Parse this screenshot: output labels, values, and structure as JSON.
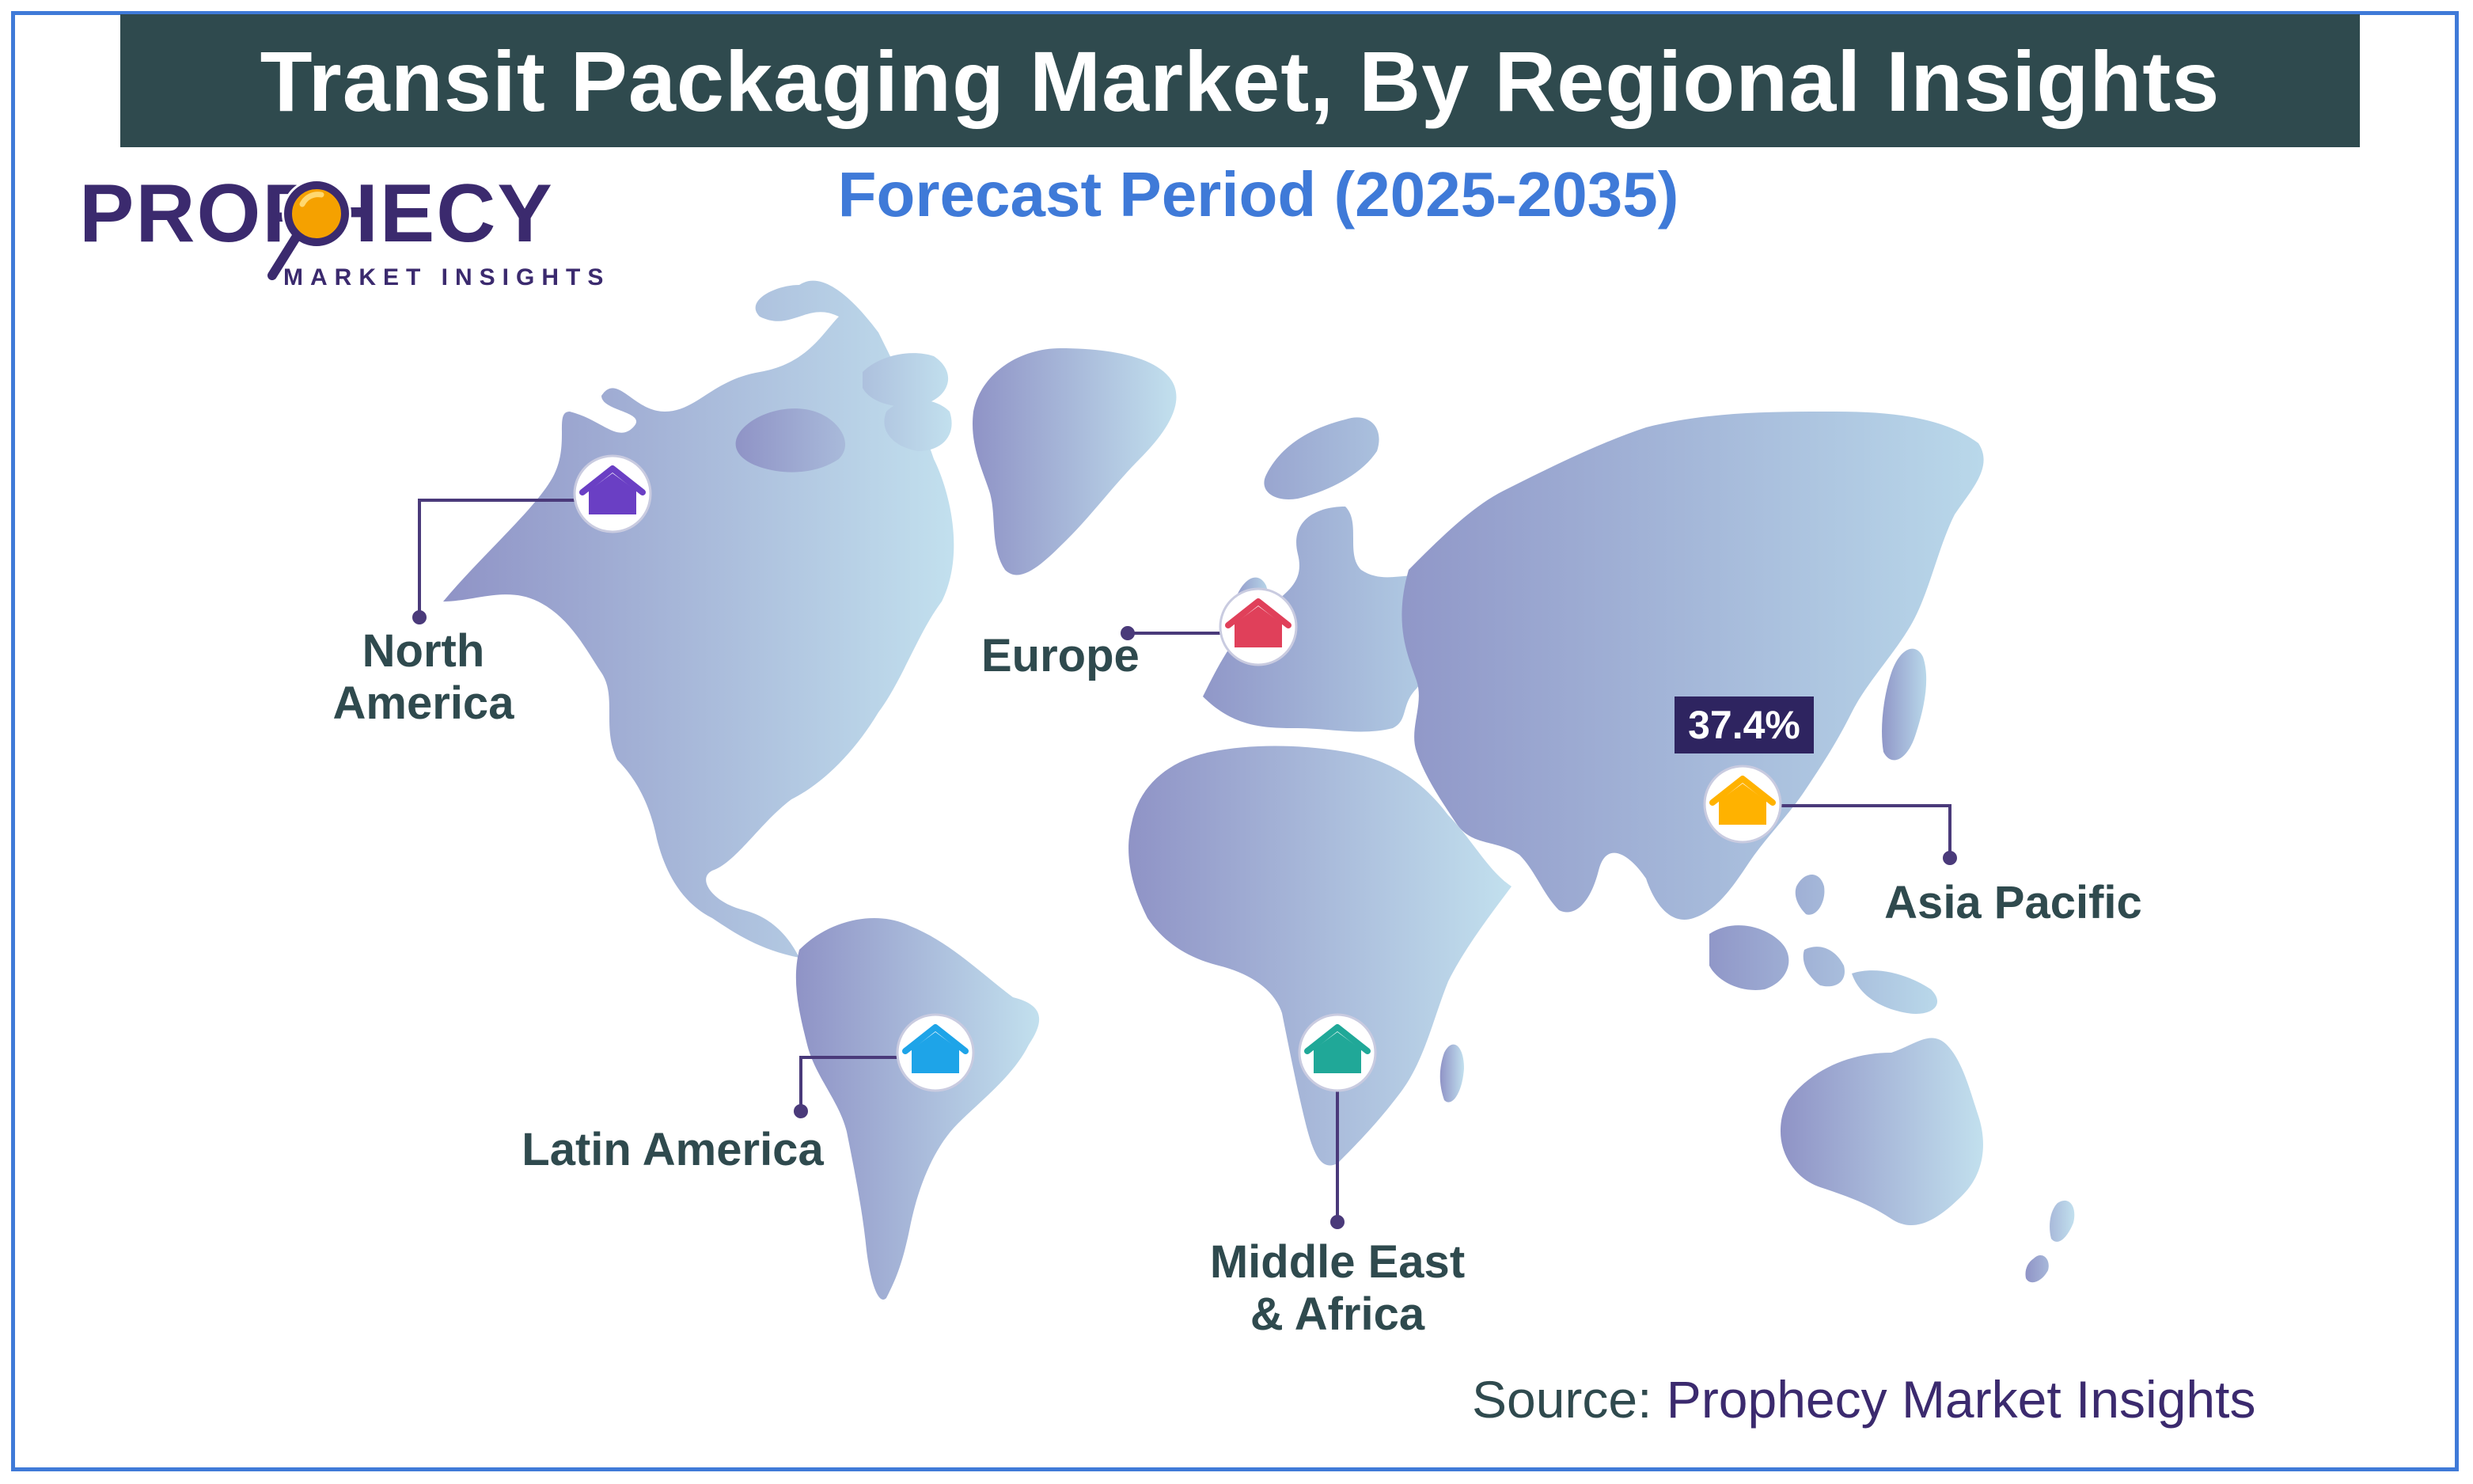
{
  "title": "Transit Packaging Market, By Regional Insights",
  "subtitle": "Forecast Period (2025-2035)",
  "logo": {
    "wordmark": "PROPHECY",
    "tagline": "MARKET INSIGHTS",
    "lens_icon": "magnifier-icon"
  },
  "regions": [
    {
      "id": "north-america",
      "line1": "North",
      "line2": "America",
      "marker_color": "#6a3fc4",
      "icon": "house-icon"
    },
    {
      "id": "europe",
      "line1": "Europe",
      "line2": "",
      "marker_color": "#e0405a",
      "icon": "house-icon"
    },
    {
      "id": "asia-pacific",
      "line1": "Asia Pacific",
      "line2": "",
      "marker_color": "#ffb200",
      "icon": "house-icon"
    },
    {
      "id": "latin-america",
      "line1": "Latin America",
      "line2": "",
      "marker_color": "#1ea4e8",
      "icon": "house-icon"
    },
    {
      "id": "middle-east-africa",
      "line1": "Middle East",
      "line2": "& Africa",
      "marker_color": "#20a898",
      "icon": "house-icon"
    }
  ],
  "asia_pacific_share": "37.4%",
  "source": {
    "prefix": "Source: ",
    "name": "Prophecy Market Insights"
  },
  "colors": {
    "title_bar": "#2f4a4e",
    "accent": "#3f7ad8",
    "brand": "#3b2a6e",
    "land_dark": "#8f96c8",
    "land_light": "#bfdcec"
  }
}
